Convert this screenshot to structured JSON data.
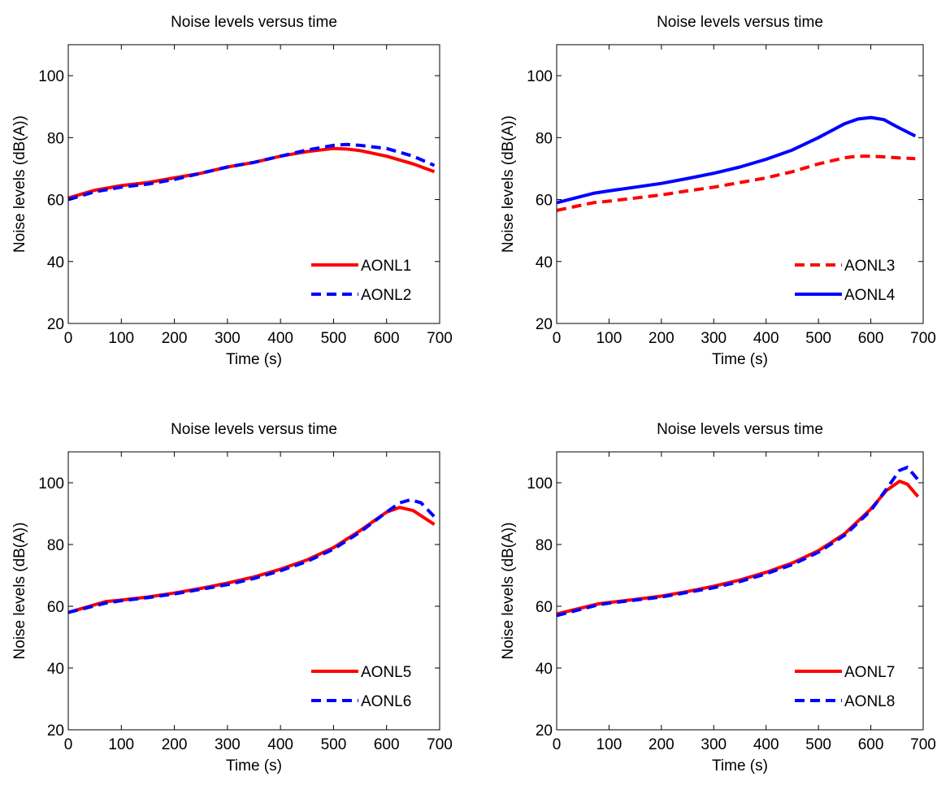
{
  "chart_data": [
    {
      "type": "line",
      "title": "Noise levels versus time",
      "xlabel": "Time (s)",
      "ylabel": "Noise levels (dB(A))",
      "xlim": [
        0,
        700
      ],
      "ylim": [
        20,
        110
      ],
      "xticks": [
        "0",
        "100",
        "200",
        "300",
        "400",
        "500",
        "600",
        "700"
      ],
      "yticks": [
        "20",
        "40",
        "60",
        "80",
        "100"
      ],
      "grid": false,
      "legend_position": "bottom-right",
      "series": [
        {
          "name": "AONL1",
          "color": "#ff0000",
          "dash": "solid",
          "x": [
            0,
            50,
            100,
            150,
            200,
            250,
            300,
            350,
            400,
            450,
            500,
            525,
            550,
            600,
            650,
            690
          ],
          "y": [
            60.5,
            63,
            64.5,
            65.5,
            67,
            68.5,
            70.5,
            72,
            74,
            75.5,
            76.5,
            76.3,
            75.8,
            74,
            71.5,
            69
          ]
        },
        {
          "name": "AONL2",
          "color": "#0000ff",
          "dash": "dashed",
          "x": [
            0,
            50,
            100,
            150,
            200,
            250,
            300,
            350,
            400,
            450,
            500,
            525,
            550,
            600,
            650,
            690
          ],
          "y": [
            60,
            62.5,
            64,
            65,
            66.5,
            68.5,
            70.5,
            72,
            74,
            76,
            77.5,
            77.8,
            77.5,
            76.5,
            74,
            71
          ]
        }
      ]
    },
    {
      "type": "line",
      "title": "Noise levels versus time",
      "xlabel": "Time (s)",
      "ylabel": "Noise levels (dB(A))",
      "xlim": [
        0,
        700
      ],
      "ylim": [
        20,
        110
      ],
      "xticks": [
        "0",
        "100",
        "200",
        "300",
        "400",
        "500",
        "600",
        "700"
      ],
      "yticks": [
        "20",
        "40",
        "60",
        "80",
        "100"
      ],
      "grid": false,
      "legend_position": "bottom-right",
      "series": [
        {
          "name": "AONL3",
          "color": "#ff0000",
          "dash": "dashed",
          "x": [
            0,
            70,
            100,
            150,
            200,
            250,
            300,
            350,
            400,
            450,
            500,
            550,
            575,
            600,
            625,
            650,
            685
          ],
          "y": [
            56.5,
            59,
            59.5,
            60.5,
            61.5,
            62.8,
            64,
            65.5,
            67,
            69,
            71.5,
            73.5,
            74,
            74,
            73.8,
            73.5,
            73.2
          ]
        },
        {
          "name": "AONL4",
          "color": "#0000ff",
          "dash": "solid",
          "x": [
            0,
            70,
            100,
            150,
            200,
            250,
            300,
            350,
            400,
            450,
            500,
            550,
            575,
            600,
            625,
            650,
            685
          ],
          "y": [
            59,
            62,
            62.8,
            64,
            65.2,
            66.8,
            68.5,
            70.5,
            73,
            76,
            80,
            84.5,
            86,
            86.5,
            85.8,
            83.5,
            80.5
          ]
        }
      ]
    },
    {
      "type": "line",
      "title": "Noise levels versus time",
      "xlabel": "Time (s)",
      "ylabel": "Noise levels (dB(A))",
      "xlim": [
        0,
        700
      ],
      "ylim": [
        20,
        110
      ],
      "xticks": [
        "0",
        "100",
        "200",
        "300",
        "400",
        "500",
        "600",
        "700"
      ],
      "yticks": [
        "20",
        "40",
        "60",
        "80",
        "100"
      ],
      "grid": false,
      "legend_position": "bottom-right",
      "series": [
        {
          "name": "AONL5",
          "color": "#ff0000",
          "dash": "solid",
          "x": [
            0,
            70,
            100,
            150,
            200,
            250,
            300,
            350,
            400,
            450,
            500,
            550,
            600,
            625,
            650,
            690
          ],
          "y": [
            58,
            61.5,
            62,
            63,
            64.3,
            65.8,
            67.5,
            69.5,
            72,
            75,
            79,
            84.5,
            90.5,
            92,
            91,
            86.5
          ]
        },
        {
          "name": "AONL6",
          "color": "#0000ff",
          "dash": "dashed",
          "x": [
            0,
            70,
            100,
            150,
            200,
            250,
            300,
            350,
            400,
            450,
            500,
            550,
            600,
            625,
            645,
            665,
            690
          ],
          "y": [
            58,
            61,
            61.8,
            62.8,
            64,
            65.5,
            67,
            69,
            71.5,
            74.5,
            78.5,
            84,
            90.5,
            93.5,
            94.5,
            93.5,
            89
          ]
        }
      ]
    },
    {
      "type": "line",
      "title": "Noise levels versus time",
      "xlabel": "Time (s)",
      "ylabel": "Noise levels (dB(A))",
      "xlim": [
        0,
        700
      ],
      "ylim": [
        20,
        110
      ],
      "xticks": [
        "0",
        "100",
        "200",
        "300",
        "400",
        "500",
        "600",
        "700"
      ],
      "yticks": [
        "20",
        "40",
        "60",
        "80",
        "100"
      ],
      "grid": false,
      "legend_position": "bottom-right",
      "series": [
        {
          "name": "AONL7",
          "color": "#ff0000",
          "dash": "solid",
          "x": [
            0,
            80,
            100,
            150,
            200,
            250,
            300,
            350,
            400,
            450,
            500,
            550,
            600,
            630,
            655,
            670,
            690
          ],
          "y": [
            57.5,
            60.8,
            61.2,
            62.2,
            63.3,
            64.8,
            66.5,
            68.5,
            71,
            74,
            78,
            83.5,
            91.5,
            97.5,
            100.5,
            99.5,
            95.5
          ]
        },
        {
          "name": "AONL8",
          "color": "#0000ff",
          "dash": "dashed",
          "x": [
            0,
            80,
            100,
            150,
            200,
            250,
            300,
            350,
            400,
            450,
            500,
            550,
            600,
            630,
            655,
            670,
            690
          ],
          "y": [
            57,
            60.5,
            61,
            62,
            63,
            64.5,
            66,
            68,
            70.5,
            73.5,
            77.5,
            83,
            91,
            98,
            104,
            105,
            101
          ]
        }
      ]
    }
  ]
}
